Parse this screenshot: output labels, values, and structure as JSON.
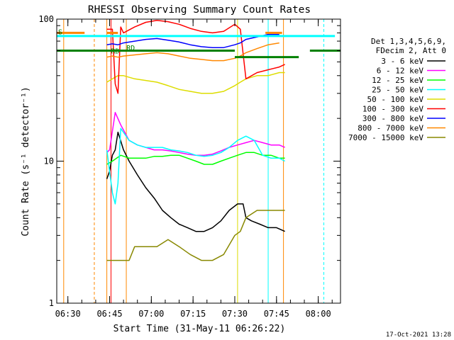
{
  "chart_data": {
    "type": "line",
    "title": "RHESSI Observing Summary Count Rates",
    "xlabel_prefix": "Start Time",
    "start_time": "(31-May-11 06:26:22)",
    "ylabel": "Count Rate (s⁻¹ detector⁻¹)",
    "y_scale": "log",
    "ylim": [
      1,
      100
    ],
    "xlim_minutes": [
      -4,
      98
    ],
    "y_ticks": [
      {
        "value": 1,
        "label": "1"
      },
      {
        "value": 10,
        "label": "10"
      },
      {
        "value": 100,
        "label": "100"
      }
    ],
    "x_ticks": [
      {
        "minute": 0,
        "label": "06:30"
      },
      {
        "minute": 15,
        "label": "06:45"
      },
      {
        "minute": 30,
        "label": "07:00"
      },
      {
        "minute": 45,
        "label": "07:15"
      },
      {
        "minute": 60,
        "label": "07:30"
      },
      {
        "minute": 75,
        "label": "07:45"
      },
      {
        "minute": 90,
        "label": "08:00"
      }
    ],
    "legend_header": [
      "Det 1,3,4,5,6,9,",
      "FDecim 2, Att 0"
    ],
    "legend_placement": "right",
    "series": [
      {
        "name": "3 - 6 keV",
        "color": "#000000",
        "x": [
          14,
          15,
          16,
          17,
          18,
          20,
          22,
          25,
          28,
          31,
          34,
          37,
          40,
          43,
          46,
          49,
          52,
          55,
          58,
          61,
          63,
          64,
          66,
          69,
          72,
          75,
          78
        ],
        "y": [
          7.5,
          8.5,
          11,
          12,
          16,
          12,
          10,
          8,
          6.5,
          5.5,
          4.5,
          4,
          3.6,
          3.4,
          3.2,
          3.2,
          3.4,
          3.8,
          4.5,
          5,
          5,
          4,
          3.8,
          3.6,
          3.4,
          3.4,
          3.2
        ]
      },
      {
        "name": "6 - 12 keV",
        "color": "#ff00ff",
        "x": [
          14,
          15,
          17,
          19,
          22,
          25,
          28,
          31,
          34,
          37,
          40,
          43,
          46,
          49,
          52,
          55,
          58,
          61,
          64,
          67,
          70,
          73,
          76,
          78
        ],
        "y": [
          11.5,
          12,
          22,
          18,
          14,
          13,
          12.5,
          12,
          12,
          11.8,
          11.5,
          11.2,
          11,
          11,
          11.2,
          11.8,
          12.5,
          13,
          13.5,
          14,
          13.5,
          13,
          13,
          12.5
        ]
      },
      {
        "name": "12 - 25 keV",
        "color": "#00ff00",
        "x": [
          14,
          16,
          19,
          22,
          25,
          28,
          31,
          34,
          37,
          40,
          43,
          46,
          49,
          52,
          55,
          58,
          61,
          64,
          67,
          70,
          73,
          76,
          78
        ],
        "y": [
          9.5,
          10,
          11,
          10.5,
          10.5,
          10.5,
          10.8,
          10.8,
          11,
          11,
          10.5,
          10,
          9.5,
          9.5,
          10,
          10.5,
          11,
          11.5,
          11.5,
          11,
          11,
          10.5,
          10.5
        ]
      },
      {
        "name": "25 - 50 keV",
        "color": "#00ffff",
        "x": [
          14,
          16,
          17,
          18,
          19,
          22,
          25,
          28,
          31,
          34,
          37,
          40,
          43,
          46,
          49,
          52,
          55,
          58,
          61,
          64,
          67,
          70,
          73,
          76,
          78
        ],
        "y": [
          12,
          6,
          5,
          7,
          17,
          14,
          13,
          12.5,
          12.5,
          12.5,
          12,
          11.8,
          11.5,
          11,
          10.8,
          11,
          11.5,
          12.5,
          14,
          15,
          14,
          11,
          10.5,
          10.5,
          10
        ]
      },
      {
        "name": "50 - 100 keV",
        "color": "#dddd00",
        "x": [
          14,
          16,
          18,
          20,
          24,
          28,
          32,
          36,
          40,
          44,
          48,
          52,
          56,
          60,
          62,
          64,
          68,
          72,
          76,
          78
        ],
        "y": [
          36,
          38,
          40,
          40,
          38,
          37,
          36,
          34,
          32,
          31,
          30,
          30,
          31,
          34,
          36,
          38,
          40,
          40,
          42,
          42
        ]
      },
      {
        "name": "100 - 300 keV",
        "color": "#ff0000",
        "x": [
          14,
          16,
          17,
          18,
          19,
          20,
          24,
          28,
          32,
          36,
          40,
          44,
          48,
          52,
          56,
          60,
          62,
          64,
          68,
          72,
          76,
          78
        ],
        "y": [
          85,
          85,
          35,
          30,
          88,
          80,
          88,
          95,
          98,
          96,
          92,
          86,
          82,
          80,
          82,
          92,
          85,
          38,
          42,
          44,
          46,
          48
        ]
      },
      {
        "name": "300 - 800 keV",
        "color": "#0000ff",
        "x": [
          14,
          16,
          18,
          20,
          24,
          28,
          32,
          36,
          40,
          44,
          48,
          52,
          56,
          60,
          62,
          64,
          68,
          72,
          76
        ],
        "y": [
          66,
          67,
          66,
          68,
          70,
          72,
          73,
          71,
          69,
          66,
          64,
          63,
          63,
          66,
          68,
          72,
          75,
          78,
          78
        ]
      },
      {
        "name": "800 - 7000 keV",
        "color": "#ff8800",
        "x": [
          14,
          16,
          18,
          20,
          24,
          28,
          32,
          36,
          40,
          44,
          48,
          52,
          56,
          60,
          62,
          64,
          68,
          72,
          76
        ],
        "y": [
          54,
          55,
          54,
          55,
          56,
          57,
          58,
          57,
          55,
          53,
          52,
          51,
          51,
          53,
          55,
          58,
          62,
          66,
          68
        ]
      },
      {
        "name": "7000 - 15000 keV",
        "color": "#888800",
        "x": [
          14,
          16,
          18,
          20,
          22,
          24,
          28,
          32,
          36,
          40,
          44,
          48,
          52,
          56,
          60,
          62,
          64,
          68,
          72,
          76,
          78
        ],
        "y": [
          2,
          2,
          2,
          2,
          2,
          2.5,
          2.5,
          2.5,
          2.8,
          2.5,
          2.2,
          2,
          2,
          2.2,
          3,
          3.2,
          4,
          4.5,
          4.5,
          4.5,
          4.5
        ]
      }
    ],
    "annotations": [
      {
        "label": "S",
        "minute": -4,
        "value": 82
      },
      {
        "label": "RD",
        "minute": 15,
        "value": 60
      },
      {
        "label": "RD",
        "minute": 20.5,
        "value": 63
      }
    ],
    "flag_bars": [
      {
        "color": "#ff8800",
        "value": 80,
        "start": -4,
        "end": 6
      },
      {
        "color": "#ff8800",
        "value": 80,
        "start": 14,
        "end": 18
      },
      {
        "color": "#ff8800",
        "value": 80,
        "start": 71,
        "end": 77
      },
      {
        "color": "#00ffff",
        "value": 76,
        "start": -4,
        "end": 96
      },
      {
        "color": "#008000",
        "value": 60,
        "start": -4,
        "end": 60
      },
      {
        "color": "#008000",
        "value": 54,
        "start": 60,
        "end": 83
      },
      {
        "color": "#008000",
        "value": 60,
        "start": 87,
        "end": 98
      }
    ],
    "vertical_markers": [
      {
        "minute": -1.5,
        "color": "#ff8800",
        "dashed": false
      },
      {
        "minute": 9.5,
        "color": "#ff8800",
        "dashed": true
      },
      {
        "minute": 14,
        "color": "#ff8800",
        "dashed": false
      },
      {
        "minute": 15.5,
        "color": "#ff0000",
        "dashed": false
      },
      {
        "minute": 21,
        "color": "#ff8800",
        "dashed": false
      },
      {
        "minute": 61,
        "color": "#dddd00",
        "dashed": false
      },
      {
        "minute": 72,
        "color": "#00ffff",
        "dashed": false
      },
      {
        "minute": 77.5,
        "color": "#ff8800",
        "dashed": false
      },
      {
        "minute": 92,
        "color": "#00ffff",
        "dashed": true
      }
    ],
    "footer_date": "17-Oct-2021 13:28"
  }
}
